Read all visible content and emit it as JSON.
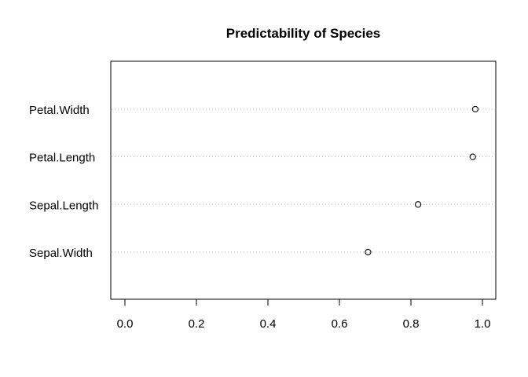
{
  "chart_data": {
    "type": "scatter",
    "title": "Predictability of Species",
    "xlabel": "",
    "ylabel": "",
    "categories": [
      "Sepal.Width",
      "Sepal.Length",
      "Petal.Length",
      "Petal.Width"
    ],
    "values": [
      0.68,
      0.82,
      0.973,
      0.98
    ],
    "xlim": [
      -0.04,
      1.04
    ],
    "x_ticks": [
      0.0,
      0.2,
      0.4,
      0.6,
      0.8,
      1.0
    ],
    "x_tick_labels": [
      "0.0",
      "0.2",
      "0.4",
      "0.6",
      "0.8",
      "1.0"
    ],
    "grid": "dotted horizontal lines per category",
    "legend": "none",
    "colors": {
      "point_stroke": "#000000",
      "grid": "#bdbdbd",
      "frame": "#000000"
    }
  }
}
